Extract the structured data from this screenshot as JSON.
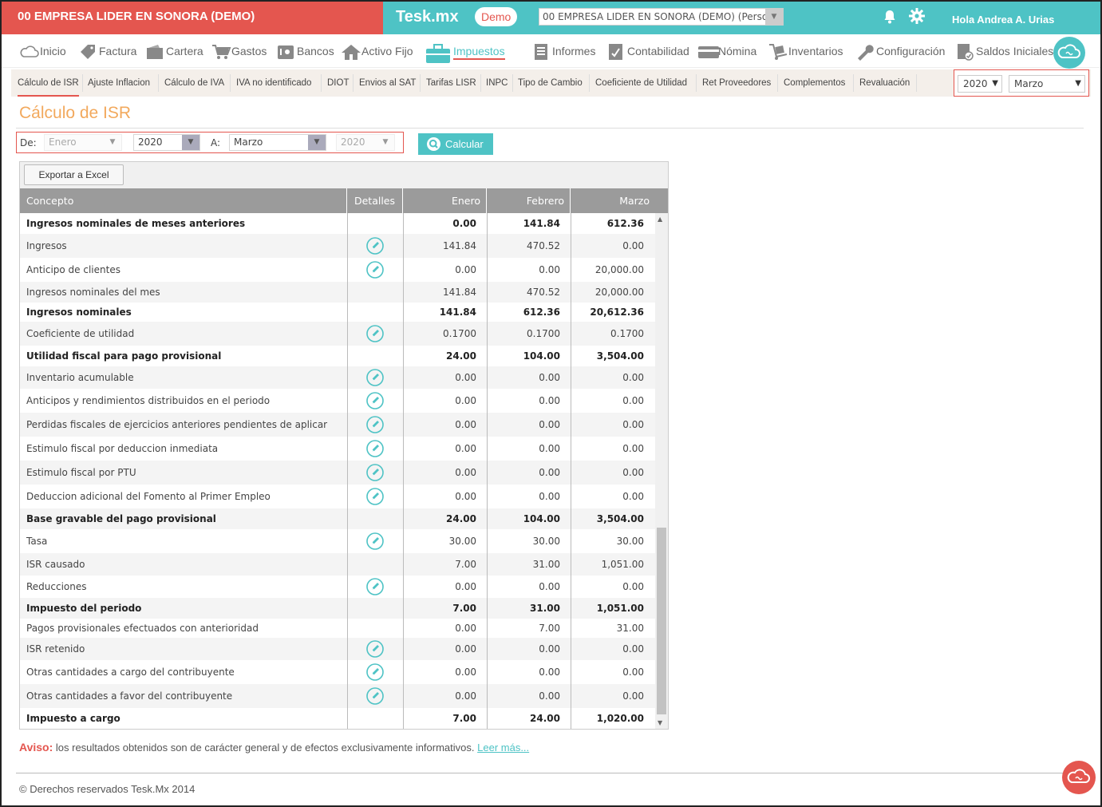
{
  "header": {
    "company": "00 EMPRESA LIDER EN SONORA (DEMO)",
    "brand": "Tesk.mx",
    "demo_badge": "Demo",
    "company_select": "00 EMPRESA LIDER EN SONORA (DEMO) (Persona",
    "greeting": "Hola Andrea A. Urias"
  },
  "nav": {
    "inicio": "Inicio",
    "factura": "Factura",
    "cartera": "Cartera",
    "gastos": "Gastos",
    "bancos": "Bancos",
    "activo_fijo": "Activo Fijo",
    "impuestos": "Impuestos",
    "informes": "Informes",
    "contabilidad": "Contabilidad",
    "nomina": "Nómina",
    "inventarios": "Inventarios",
    "configuracion": "Configuración",
    "saldos_iniciales": "Saldos Iniciales"
  },
  "subnav": {
    "calculo_isr": "Cálculo de ISR",
    "ajuste_inflacion": "Ajuste Inflacion",
    "calculo_iva": "Cálculo de IVA",
    "iva_no_id": "IVA no identificado",
    "diot": "DIOT",
    "envios_sat": "Envios al SAT",
    "tarifas_lisr": "Tarifas LISR",
    "inpc": "INPC",
    "tipo_cambio": "Tipo de Cambio",
    "coef_utilidad": "Coeficiente de Utilidad",
    "ret_proveedores": "Ret Proveedores",
    "complementos": "Complementos",
    "revaluacion": "Revaluación",
    "year": "2020",
    "month": "Marzo"
  },
  "page": {
    "title": "Cálculo de ISR",
    "de_label": "De:",
    "a_label": "A:",
    "from_month": "Enero",
    "from_year": "2020",
    "to_month": "Marzo",
    "to_year": "2020",
    "calc_button": "Calcular",
    "export_button": "Exportar a Excel"
  },
  "table": {
    "headers": {
      "concepto": "Concepto",
      "detalles": "Detalles",
      "m1": "Enero",
      "m2": "Febrero",
      "m3": "Marzo"
    },
    "rows": [
      {
        "concept": "Ingresos nominales de meses anteriores",
        "bold": true,
        "edit": false,
        "v": [
          "0.00",
          "141.84",
          "612.36"
        ]
      },
      {
        "concept": "Ingresos",
        "bold": false,
        "edit": true,
        "v": [
          "141.84",
          "470.52",
          "0.00"
        ]
      },
      {
        "concept": "Anticipo de clientes",
        "bold": false,
        "edit": true,
        "v": [
          "0.00",
          "0.00",
          "20,000.00"
        ]
      },
      {
        "concept": "Ingresos nominales del mes",
        "bold": false,
        "edit": false,
        "v": [
          "141.84",
          "470.52",
          "20,000.00"
        ]
      },
      {
        "concept": "Ingresos nominales",
        "bold": true,
        "edit": false,
        "v": [
          "141.84",
          "612.36",
          "20,612.36"
        ]
      },
      {
        "concept": "Coeficiente de utilidad",
        "bold": false,
        "edit": true,
        "v": [
          "0.1700",
          "0.1700",
          "0.1700"
        ]
      },
      {
        "concept": "Utilidad fiscal para pago provisional",
        "bold": true,
        "edit": false,
        "v": [
          "24.00",
          "104.00",
          "3,504.00"
        ]
      },
      {
        "concept": "Inventario acumulable",
        "bold": false,
        "edit": true,
        "v": [
          "0.00",
          "0.00",
          "0.00"
        ]
      },
      {
        "concept": "Anticipos y rendimientos distribuidos en el periodo",
        "bold": false,
        "edit": true,
        "v": [
          "0.00",
          "0.00",
          "0.00"
        ]
      },
      {
        "concept": "Perdidas fiscales de ejercicios anteriores pendientes de aplicar",
        "bold": false,
        "edit": true,
        "v": [
          "0.00",
          "0.00",
          "0.00"
        ]
      },
      {
        "concept": "Estimulo fiscal por deduccion inmediata",
        "bold": false,
        "edit": true,
        "v": [
          "0.00",
          "0.00",
          "0.00"
        ]
      },
      {
        "concept": "Estimulo fiscal por PTU",
        "bold": false,
        "edit": true,
        "v": [
          "0.00",
          "0.00",
          "0.00"
        ]
      },
      {
        "concept": "Deduccion adicional del Fomento al Primer Empleo",
        "bold": false,
        "edit": true,
        "v": [
          "0.00",
          "0.00",
          "0.00"
        ]
      },
      {
        "concept": "Base gravable del pago provisional",
        "bold": true,
        "edit": false,
        "v": [
          "24.00",
          "104.00",
          "3,504.00"
        ]
      },
      {
        "concept": "Tasa",
        "bold": false,
        "edit": true,
        "v": [
          "30.00",
          "30.00",
          "30.00"
        ]
      },
      {
        "concept": "ISR causado",
        "bold": false,
        "edit": false,
        "v": [
          "7.00",
          "31.00",
          "1,051.00"
        ]
      },
      {
        "concept": "Reducciones",
        "bold": false,
        "edit": true,
        "v": [
          "0.00",
          "0.00",
          "0.00"
        ]
      },
      {
        "concept": "Impuesto del periodo",
        "bold": true,
        "edit": false,
        "v": [
          "7.00",
          "31.00",
          "1,051.00"
        ]
      },
      {
        "concept": "Pagos provisionales efectuados con anterioridad",
        "bold": false,
        "edit": false,
        "v": [
          "0.00",
          "7.00",
          "31.00"
        ]
      },
      {
        "concept": "ISR retenido",
        "bold": false,
        "edit": true,
        "v": [
          "0.00",
          "0.00",
          "0.00"
        ]
      },
      {
        "concept": "Otras cantidades a cargo del contribuyente",
        "bold": false,
        "edit": true,
        "v": [
          "0.00",
          "0.00",
          "0.00"
        ]
      },
      {
        "concept": "Otras cantidades a favor del contribuyente",
        "bold": false,
        "edit": true,
        "v": [
          "0.00",
          "0.00",
          "0.00"
        ]
      },
      {
        "concept": "Impuesto a cargo",
        "bold": true,
        "edit": false,
        "v": [
          "7.00",
          "24.00",
          "1,020.00"
        ]
      }
    ]
  },
  "notice": {
    "label": "Aviso:",
    "text": " los resultados obtenidos son de carácter general y de efectos exclusivamente informativos. ",
    "link": "Leer más..."
  },
  "footer": {
    "text": "© Derechos reservados Tesk.Mx 2014"
  },
  "colors": {
    "accent_teal": "#4ec3c5",
    "accent_red": "#e4564f",
    "title_orange": "#f2a95d"
  }
}
